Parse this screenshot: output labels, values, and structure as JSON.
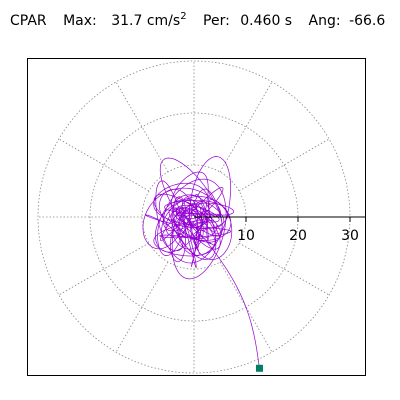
{
  "header": {
    "label": "CPAR",
    "max_label": "Max:",
    "max_value": "31.7 cm/s",
    "max_exponent": "2",
    "per_label": "Per:",
    "per_value": "0.460 s",
    "ang_label": "Ang:",
    "ang_value": "-66.6"
  },
  "chart_data": {
    "type": "polar-orbit",
    "title": "",
    "rings": [
      10,
      20,
      30
    ],
    "r_max": 34,
    "tick_labels": [
      "10",
      "20",
      "30"
    ],
    "spokes_deg": [
      30,
      60,
      90,
      120,
      150,
      180,
      210,
      240,
      270,
      300,
      330
    ],
    "max_radius": 31.7,
    "max_angle_deg": -66.6,
    "end_point": {
      "r": 31.7,
      "angle_deg": -66.6
    },
    "trace_color": "#9400d3",
    "marker_color": "#008060",
    "grid_color": "#888888"
  }
}
